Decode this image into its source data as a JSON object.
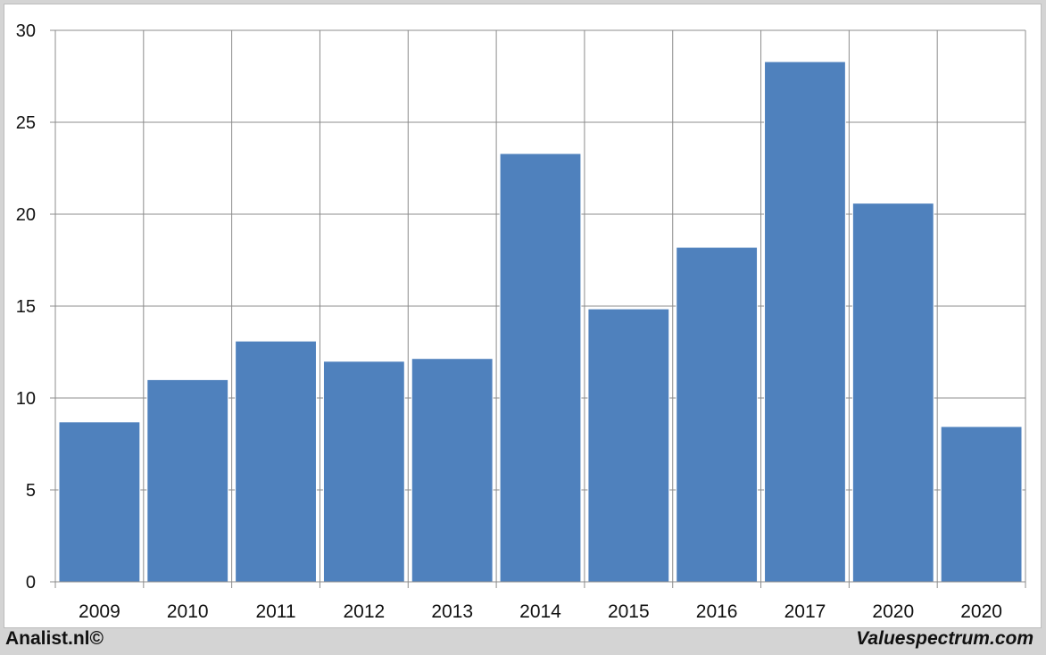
{
  "chart_data": {
    "type": "bar",
    "categories": [
      "2009",
      "2010",
      "2011",
      "2012",
      "2013",
      "2014",
      "2015",
      "2016",
      "2017",
      "2020",
      "2020"
    ],
    "values": [
      8.7,
      11.0,
      13.1,
      12.0,
      12.15,
      23.3,
      14.85,
      18.2,
      28.3,
      20.6,
      8.45
    ],
    "title": "",
    "xlabel": "",
    "ylabel": "",
    "ylim": [
      0,
      30
    ],
    "yticks": [
      0,
      5,
      10,
      15,
      20,
      25,
      30
    ],
    "grid": true,
    "bar_color": "#4f81bd",
    "grid_color": "#8c8c8c"
  },
  "footer": {
    "left": "Analist.nl©",
    "right": "Valuespectrum.com"
  }
}
